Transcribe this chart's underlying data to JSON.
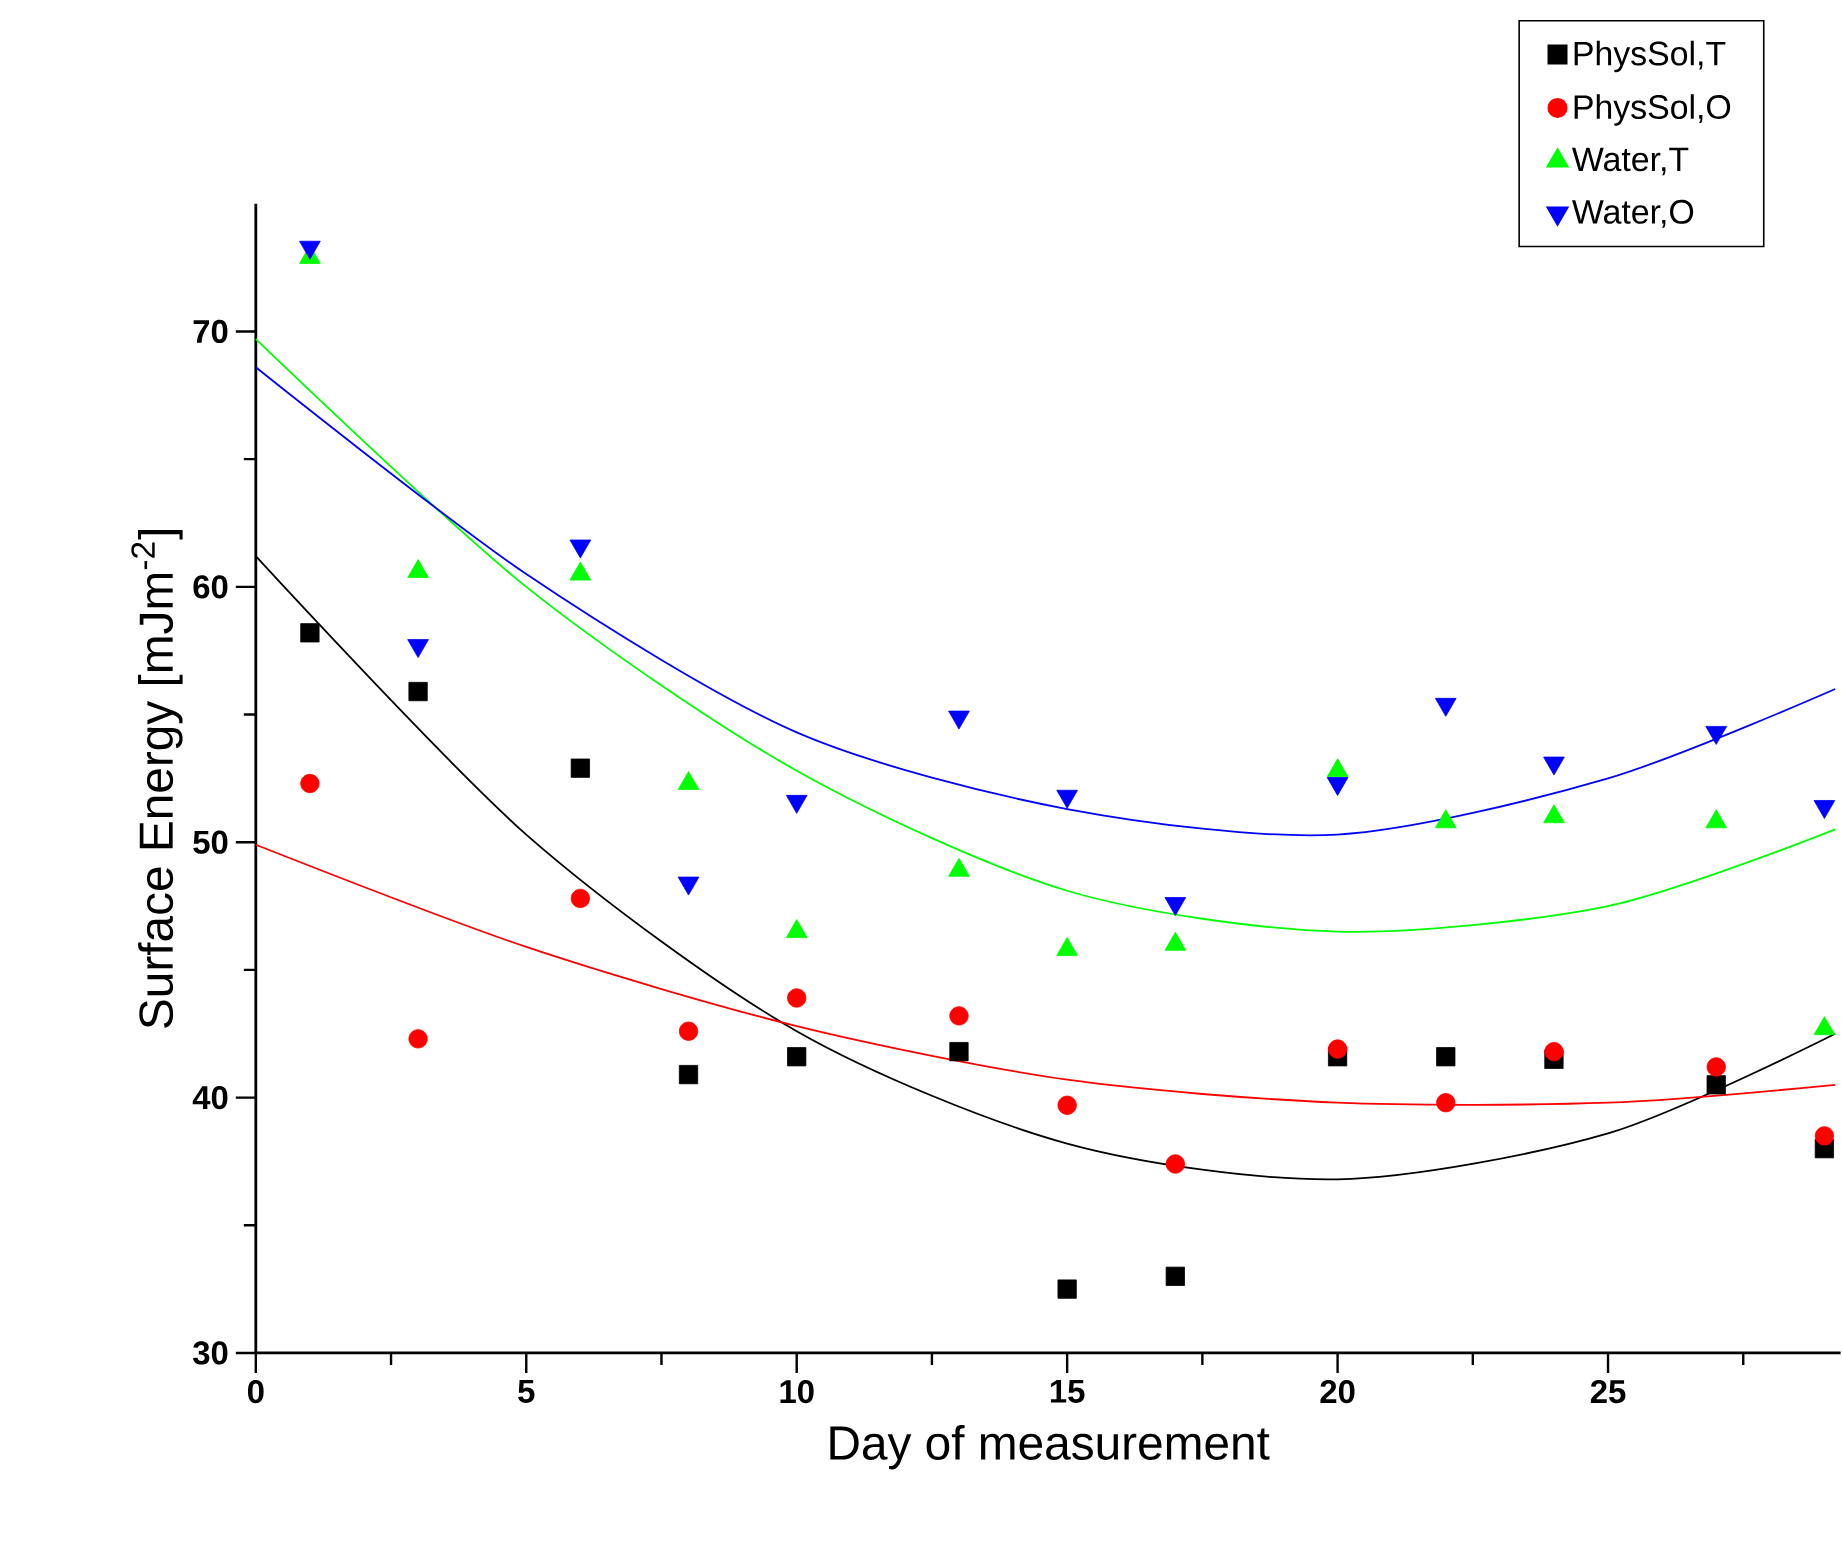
{
  "chart_data": {
    "type": "scatter",
    "xlabel": "Day of measurement",
    "ylabel": "Surface Energy [mJm$^{-2}$]",
    "xlim": [
      0,
      29.3
    ],
    "ylim": [
      30,
      75
    ],
    "xticks": [
      0,
      {
        "value": 2.5,
        "label": null
      },
      5,
      {
        "value": 7.5,
        "label": null
      },
      10,
      {
        "value": 12.5,
        "label": null
      },
      15,
      {
        "value": 17.5,
        "label": null
      },
      20,
      {
        "value": 22.5,
        "label": null
      },
      25,
      {
        "value": 27.5,
        "label": null
      }
    ],
    "yticks": [
      30,
      {
        "value": 35,
        "label": null
      },
      40,
      {
        "value": 45,
        "label": null
      },
      50,
      {
        "value": 55,
        "label": null
      },
      60,
      {
        "value": 65,
        "label": null
      },
      70
    ],
    "legend": "top right",
    "grid": false,
    "series": [
      {
        "name": "PhysSol,T",
        "color": "#000000",
        "marker": "square",
        "x": [
          1,
          3,
          6,
          8,
          10,
          13,
          15,
          17,
          20,
          22,
          24,
          27,
          29
        ],
        "values": [
          58.2,
          55.9,
          52.9,
          40.9,
          41.6,
          41.8,
          32.5,
          33.0,
          41.6,
          41.6,
          41.5,
          40.5,
          38.0
        ]
      },
      {
        "name": "PhysSol,O",
        "color": "#ff0000",
        "marker": "circle",
        "x": [
          1,
          3,
          6,
          8,
          10,
          13,
          15,
          17,
          20,
          22,
          24,
          27,
          29
        ],
        "values": [
          52.3,
          42.3,
          47.8,
          42.6,
          43.9,
          43.2,
          39.7,
          37.4,
          41.9,
          39.8,
          41.8,
          41.2,
          38.5
        ]
      },
      {
        "name": "Water,T",
        "color": "#00ff00",
        "marker": "triangle",
        "x": [
          1,
          3,
          6,
          8,
          10,
          13,
          15,
          17,
          20,
          22,
          24,
          27,
          29
        ],
        "values": [
          72.9,
          60.6,
          60.5,
          52.3,
          46.5,
          48.9,
          45.8,
          46.0,
          52.8,
          50.8,
          51.0,
          50.8,
          42.7
        ]
      },
      {
        "name": "Water,O",
        "color": "#0000ff",
        "marker": "triangle-down",
        "x": [
          1,
          3,
          6,
          8,
          10,
          13,
          15,
          17,
          20,
          22,
          24,
          27,
          29
        ],
        "values": [
          73.3,
          57.7,
          61.6,
          48.4,
          51.6,
          54.9,
          51.8,
          47.6,
          52.3,
          55.4,
          53.1,
          54.3,
          51.4
        ]
      },
      {
        "type": "line",
        "color": "#000000",
        "x": [
          0,
          5,
          10,
          15,
          20,
          25,
          29.2
        ],
        "values": [
          61.2,
          50.3,
          42.6,
          38.2,
          36.8,
          38.6,
          42.5
        ]
      },
      {
        "type": "line",
        "color": "#ff0000",
        "x": [
          0,
          5,
          10,
          15,
          20,
          25,
          29.2
        ],
        "values": [
          49.9,
          45.9,
          42.8,
          40.7,
          39.8,
          39.8,
          40.5
        ]
      },
      {
        "type": "line",
        "color": "#00ff00",
        "x": [
          0,
          5,
          10,
          15,
          20,
          25,
          29.2
        ],
        "values": [
          69.7,
          60.0,
          52.8,
          48.1,
          46.5,
          47.5,
          50.5
        ]
      },
      {
        "type": "line",
        "color": "#0000ff",
        "x": [
          0,
          5,
          10,
          15,
          20,
          25,
          29.2
        ],
        "values": [
          68.6,
          60.5,
          54.3,
          51.3,
          50.3,
          52.5,
          56.0
        ]
      }
    ]
  }
}
